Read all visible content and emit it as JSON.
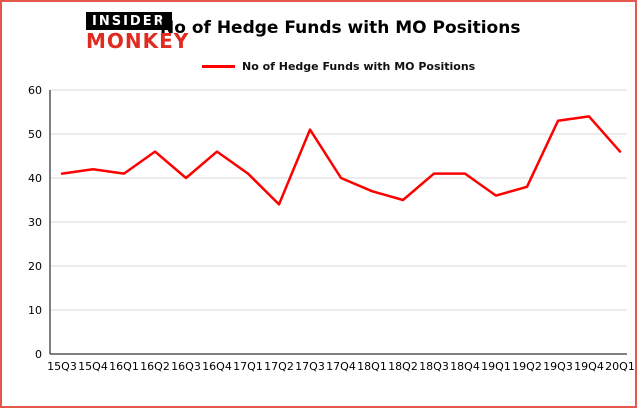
{
  "brand": {
    "line1": "INSIDER",
    "line2": "MONKEY"
  },
  "header": {
    "title": "No of Hedge Funds with MO Positions"
  },
  "legend": {
    "label": "No of Hedge Funds with MO Positions",
    "color": "#ff0000"
  },
  "colors": {
    "accent": "#ff0000",
    "page_border": "#e4574d",
    "grid": "#d9d9d9",
    "axis": "#000000",
    "logo_red": "#e02b20",
    "logo_black": "#000000"
  },
  "chart_data": {
    "type": "line",
    "title": "No of Hedge Funds with MO Positions",
    "categories": [
      "15Q3",
      "15Q4",
      "16Q1",
      "16Q2",
      "16Q3",
      "16Q4",
      "17Q1",
      "17Q2",
      "17Q3",
      "17Q4",
      "18Q1",
      "18Q2",
      "18Q3",
      "18Q4",
      "19Q1",
      "19Q2",
      "19Q3",
      "19Q4",
      "20Q1"
    ],
    "values": [
      41,
      42,
      41,
      46,
      40,
      46,
      41,
      34,
      51,
      40,
      37,
      35,
      41,
      41,
      36,
      38,
      53,
      54,
      46
    ],
    "series_name": "No of Hedge Funds with MO Positions",
    "xlabel": "",
    "ylabel": "",
    "ylim": [
      0,
      60
    ],
    "yticks": [
      0,
      10,
      20,
      30,
      40,
      50,
      60
    ],
    "grid": true,
    "legend_position": "top-left",
    "line_color": "#ff0000"
  }
}
